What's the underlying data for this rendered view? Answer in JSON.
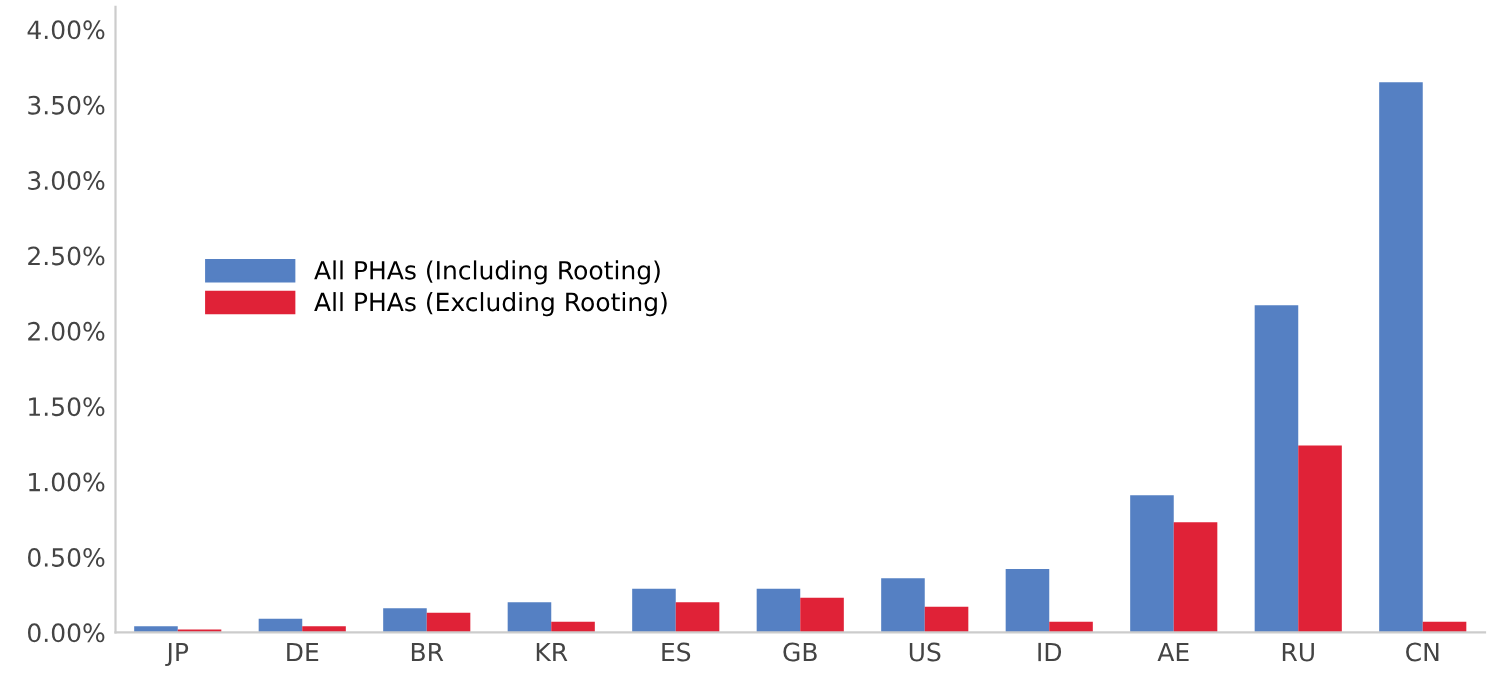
{
  "chart_data": {
    "type": "bar",
    "categories": [
      "JP",
      "DE",
      "BR",
      "KR",
      "ES",
      "GB",
      "US",
      "ID",
      "AE",
      "RU",
      "CN"
    ],
    "series": [
      {
        "name": "All PHAs (Including Rooting)",
        "color": "#5580c3",
        "values": [
          0.04,
          0.09,
          0.16,
          0.2,
          0.29,
          0.29,
          0.36,
          0.42,
          0.91,
          2.17,
          3.65
        ]
      },
      {
        "name": "All PHAs (Excluding Rooting)",
        "color": "#e02237",
        "values": [
          0.02,
          0.04,
          0.13,
          0.07,
          0.2,
          0.23,
          0.17,
          0.07,
          0.73,
          1.24,
          0.07
        ]
      }
    ],
    "ylim": [
      0,
      4.15
    ],
    "yticks": [
      {
        "value": 0,
        "label": "0.00%"
      },
      {
        "value": 0.5,
        "label": "0.50%"
      },
      {
        "value": 1,
        "label": "1.00%"
      },
      {
        "value": 1.5,
        "label": "1.50%"
      },
      {
        "value": 2,
        "label": "2.00%"
      },
      {
        "value": 2.5,
        "label": "2.50%"
      },
      {
        "value": 3,
        "label": "3.00%"
      },
      {
        "value": 3.5,
        "label": "3.50%"
      },
      {
        "value": 4,
        "label": "4.00%"
      }
    ],
    "grid": false,
    "legend": "left"
  }
}
